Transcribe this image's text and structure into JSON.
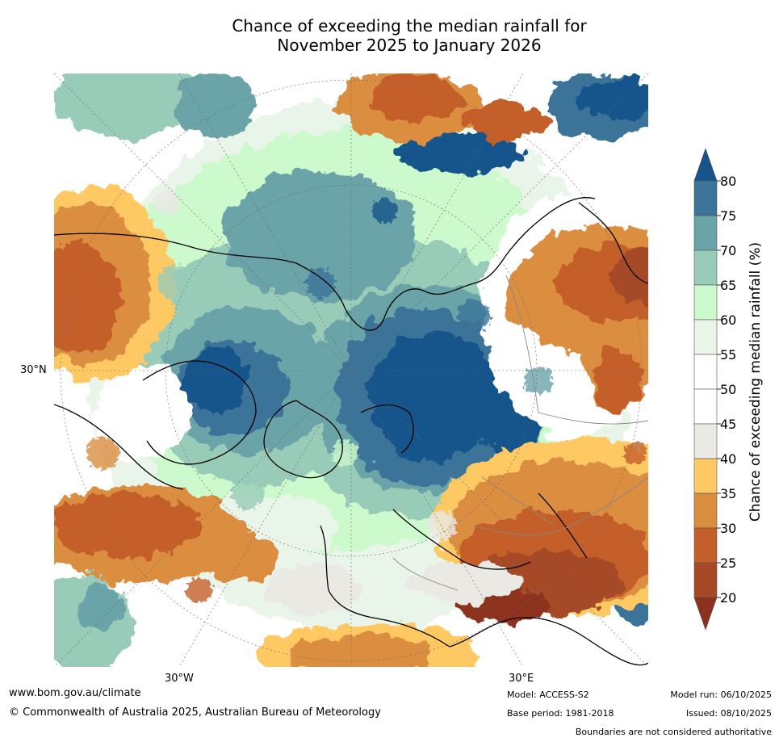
{
  "title": {
    "line1": "Chance of exceeding the median rainfall for",
    "line2": "November 2025 to January 2026"
  },
  "map": {
    "lat_label": "30°N",
    "lon_labels": [
      "30°W",
      "30°E"
    ]
  },
  "colorbar": {
    "label": "Chance of exceeding median rainfall (%)",
    "ticks": [
      "80",
      "75",
      "70",
      "65",
      "60",
      "55",
      "50",
      "45",
      "40",
      "35",
      "30",
      "25",
      "20"
    ],
    "colors": {
      "above_80": "#17548c",
      "75_80": "#3b7399",
      "70_75": "#6aa3a8",
      "65_70": "#99ccb8",
      "60_65": "#ccfacc",
      "55_60": "#eaf5ea",
      "50_55": "#ffffff",
      "45_50": "#ffffff",
      "40_45": "#ebe9e4",
      "35_40": "#fec964",
      "30_35": "#db8d3f",
      "25_30": "#c45e2b",
      "20_25": "#a64826",
      "below_20": "#8d311f"
    }
  },
  "footer": {
    "url": "www.bom.gov.au/climate",
    "copyright": "© Commonwealth of Australia 2025, Australian Bureau of Meteorology",
    "model": "Model: ACCESS-S2",
    "base_period": "Base period: 1981-2018",
    "model_run": "Model run: 06/10/2025",
    "issued": "Issued: 08/10/2025",
    "disclaimer": "Boundaries are not considered authoritative"
  }
}
